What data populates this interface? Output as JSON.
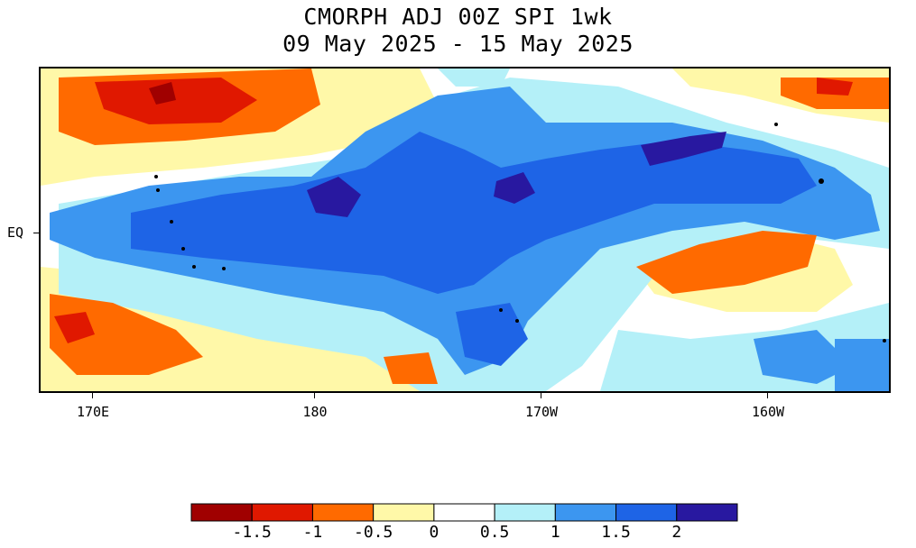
{
  "title": {
    "line1": "CMORPH ADJ 00Z SPI 1wk",
    "line2": "09 May 2025 - 15 May 2025"
  },
  "axes": {
    "y_ticks": [
      "EQ"
    ],
    "x_ticks": [
      "170E",
      "180",
      "170W",
      "160W"
    ]
  },
  "legend": {
    "labels": [
      "-1.5",
      "-1",
      "-0.5",
      "0",
      "0.5",
      "1",
      "1.5",
      "2"
    ],
    "colors": [
      "#a00000",
      "#e01800",
      "#ff6a00",
      "#fff8a8",
      "#ffffff",
      "#b4f0f8",
      "#3c96f0",
      "#1e64e6",
      "#2818a0"
    ]
  },
  "palette": {
    "land": "#000000",
    "frame": "#000000"
  }
}
